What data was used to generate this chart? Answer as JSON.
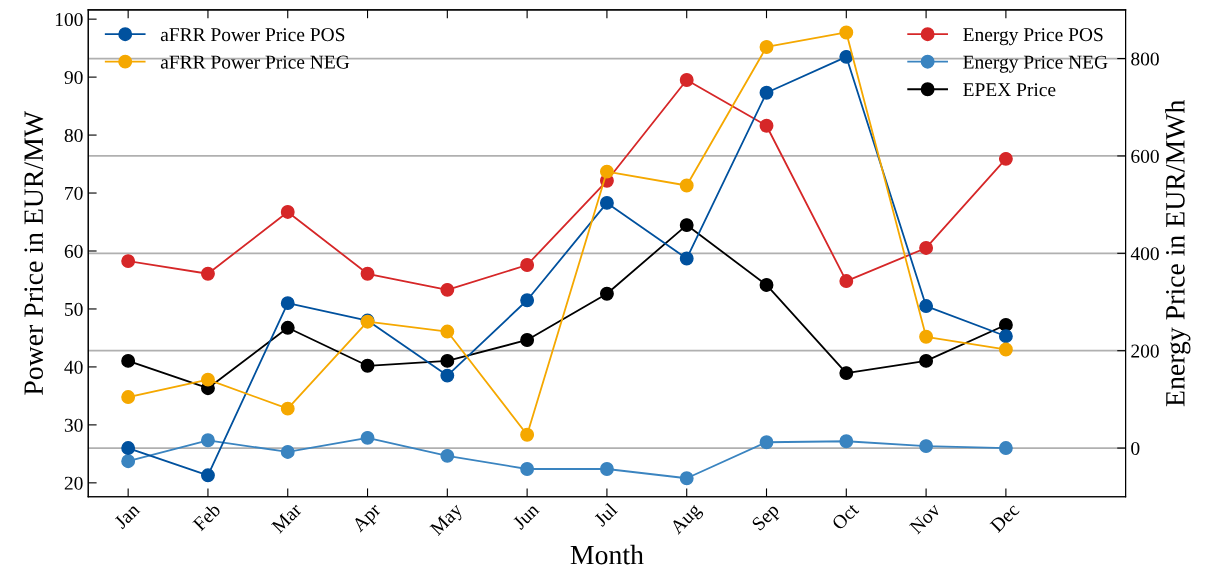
{
  "chart_data": {
    "type": "line",
    "xlabel": "Month",
    "ylabel": "Power Price in EUR/MW",
    "y2label": "Energy Price in EUR/MWh",
    "categories": [
      "Jan",
      "Feb",
      "Mar",
      "Apr",
      "May",
      "Jun",
      "Jul",
      "Aug",
      "Sep",
      "Oct",
      "Nov",
      "Dec"
    ],
    "series": [
      {
        "name": "aFRR Power Price POS",
        "color": "#00519e",
        "values": [
          26,
          21.3,
          51,
          48,
          38.5,
          51.5,
          68.3,
          58.7,
          87.3,
          93.5,
          50.5,
          45.3
        ]
      },
      {
        "name": "aFRR Power Price NEG",
        "color": "#f5a800",
        "values": [
          34.8,
          37.8,
          32.8,
          47.8,
          46.1,
          28.3,
          73.7,
          71.3,
          95.2,
          97.7,
          45.2,
          43
        ]
      },
      {
        "name": "Energy Price POS",
        "color": "#d62728",
        "axis": "y2",
        "values": [
          384,
          358,
          485,
          358,
          325,
          376,
          549,
          756,
          662,
          343,
          411,
          594
        ]
      },
      {
        "name": "Energy Price NEG",
        "color": "#3a84c0",
        "axis": "y2",
        "values": [
          -27,
          16,
          -8,
          21,
          -16,
          -43,
          -43,
          -62,
          12,
          14,
          4,
          0
        ]
      },
      {
        "name": "EPEX Price",
        "color": "#000000",
        "axis": "y2",
        "values": [
          179,
          123,
          247,
          169,
          179,
          222,
          317,
          458,
          335,
          154,
          179,
          253
        ]
      }
    ],
    "ylim": [
      17.6,
      101.6
    ],
    "yticks": [
      20,
      30,
      40,
      50,
      60,
      70,
      80,
      90,
      100
    ],
    "y2lim": [
      -100,
      900
    ],
    "y2ticks": [
      0,
      200,
      400,
      600,
      800
    ],
    "grid": "y2",
    "legend": "top",
    "marker": "circle",
    "line_style": "solid"
  }
}
